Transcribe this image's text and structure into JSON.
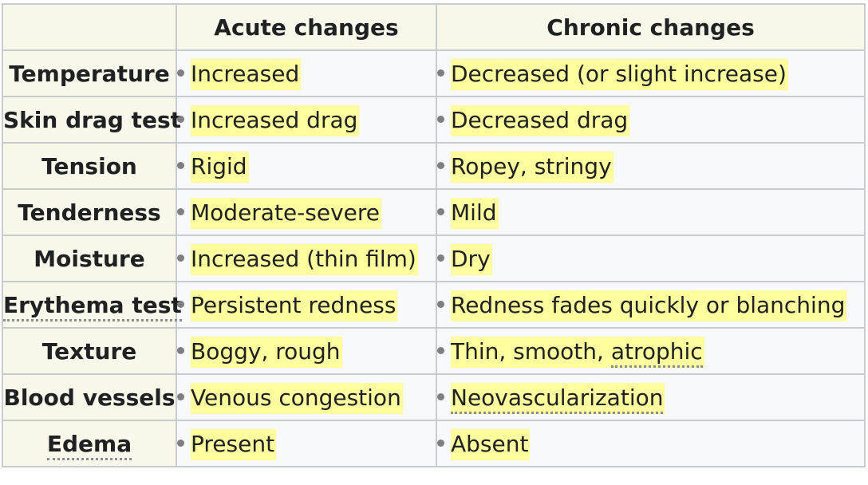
{
  "table": {
    "headers": [
      "",
      "Acute changes",
      "Chronic changes"
    ],
    "rows": [
      {
        "label": "Temperature",
        "acute": "Increased",
        "chronic": "Decreased (or slight increase)"
      },
      {
        "label": "Skin drag test",
        "acute": "Increased drag",
        "chronic": "Decreased drag"
      },
      {
        "label": "Tension",
        "acute": "Rigid",
        "chronic": "Ropey, stringy"
      },
      {
        "label": "Tenderness",
        "acute": "Moderate-severe",
        "chronic": "Mild"
      },
      {
        "label": "Moisture",
        "acute": "Increased (thin film)",
        "chronic": "Dry"
      },
      {
        "label": "Erythema test",
        "acute": "Persistent redness",
        "chronic": "Redness fades quickly or blanching"
      },
      {
        "label": "Texture",
        "acute": "Boggy, rough",
        "chronic_prefix": "Thin, smooth, ",
        "chronic_link": "atrophic"
      },
      {
        "label": "Blood vessels",
        "acute": "Venous congestion",
        "chronic_link": "Neovascularization"
      },
      {
        "label": "Edema",
        "acute": "Present",
        "chronic": "Absent"
      }
    ]
  }
}
